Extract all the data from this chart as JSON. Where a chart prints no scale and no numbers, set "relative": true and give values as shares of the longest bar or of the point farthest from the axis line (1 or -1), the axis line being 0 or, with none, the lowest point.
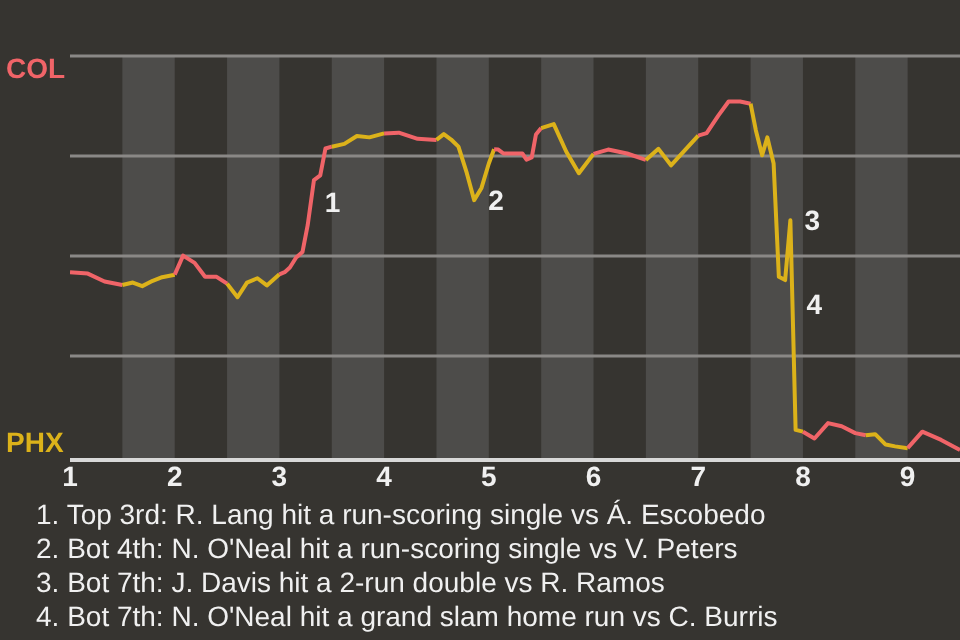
{
  "chart_data": {
    "type": "line",
    "relative": true,
    "xlim": [
      1,
      9.5
    ],
    "xticks": [
      1,
      2,
      3,
      4,
      5,
      6,
      7,
      8,
      9
    ],
    "series": [
      {
        "color": "#f06468",
        "x": [
          1,
          1.17,
          1.33,
          1.5
        ],
        "values": [
          0.524,
          0.52,
          0.498,
          0.488
        ]
      },
      {
        "color": "#dcb21a",
        "x": [
          1.5,
          1.6,
          1.69,
          1.79,
          1.88,
          2
        ],
        "values": [
          0.488,
          0.495,
          0.485,
          0.5,
          0.51,
          0.517
        ]
      },
      {
        "color": "#f06468",
        "x": [
          2,
          2.08,
          2.19,
          2.29,
          2.4,
          2.5
        ],
        "values": [
          0.517,
          0.57,
          0.55,
          0.511,
          0.511,
          0.492
        ]
      },
      {
        "color": "#dcb21a",
        "x": [
          2.5,
          2.6,
          2.69,
          2.79,
          2.88,
          3
        ],
        "values": [
          0.492,
          0.454,
          0.495,
          0.507,
          0.487,
          0.518
        ]
      },
      {
        "color": "#f06468",
        "x": [
          3,
          3.05,
          3.1,
          3.16,
          3.22,
          3.27,
          3.33,
          3.39,
          3.44,
          3.5
        ],
        "values": [
          0.518,
          0.524,
          0.537,
          0.565,
          0.58,
          0.655,
          0.781,
          0.794,
          0.869,
          0.874
        ]
      },
      {
        "color": "#dcb21a",
        "x": [
          3.5,
          3.62,
          3.74,
          3.86,
          4
        ],
        "values": [
          0.874,
          0.882,
          0.904,
          0.9,
          0.911
        ]
      },
      {
        "color": "#f06468",
        "x": [
          4,
          4.14,
          4.32,
          4.5
        ],
        "values": [
          0.911,
          0.913,
          0.896,
          0.893
        ]
      },
      {
        "color": "#dcb21a",
        "x": [
          4.5,
          4.57,
          4.64,
          4.71,
          4.79,
          4.86,
          4.93,
          5,
          5.05
        ],
        "values": [
          0.893,
          0.909,
          0.894,
          0.874,
          0.8,
          0.725,
          0.759,
          0.827,
          0.867
        ]
      },
      {
        "color": "#f06468",
        "x": [
          5.05,
          5.09,
          5.14,
          5.18,
          5.23,
          5.27,
          5.32,
          5.36,
          5.41,
          5.45,
          5.5
        ],
        "values": [
          0.867,
          0.866,
          0.855,
          0.855,
          0.855,
          0.855,
          0.855,
          0.838,
          0.844,
          0.908,
          0.926
        ]
      },
      {
        "color": "#dcb21a",
        "x": [
          5.5,
          5.62,
          5.74,
          5.86,
          6
        ],
        "values": [
          0.926,
          0.937,
          0.86,
          0.8,
          0.854
        ]
      },
      {
        "color": "#f06468",
        "x": [
          6,
          6.14,
          6.32,
          6.5
        ],
        "values": [
          0.854,
          0.866,
          0.855,
          0.837
        ]
      },
      {
        "color": "#dcb21a",
        "x": [
          6.5,
          6.62,
          6.74,
          6.86,
          7
        ],
        "values": [
          0.837,
          0.868,
          0.822,
          0.86,
          0.905
        ]
      },
      {
        "color": "#f06468",
        "x": [
          7,
          7.08,
          7.19,
          7.29,
          7.4,
          7.5
        ],
        "values": [
          0.905,
          0.912,
          0.96,
          1,
          1,
          0.994
        ]
      },
      {
        "color": "#dcb21a",
        "x": [
          7.5,
          7.55,
          7.61,
          7.66,
          7.72,
          7.77,
          7.83,
          7.88,
          7.93,
          8
        ],
        "values": [
          0.994,
          0.92,
          0.85,
          0.9,
          0.827,
          0.511,
          0.502,
          0.669,
          0.084,
          0.079
        ]
      },
      {
        "color": "#f06468",
        "x": [
          8,
          8.11,
          8.24,
          8.37,
          8.5,
          8.6
        ],
        "values": [
          0.079,
          0.06,
          0.103,
          0.094,
          0.075,
          0.069
        ]
      },
      {
        "color": "#dcb21a",
        "x": [
          8.6,
          8.69,
          8.79,
          8.88,
          9
        ],
        "values": [
          0.069,
          0.072,
          0.043,
          0.038,
          0.033
        ]
      },
      {
        "color": "#f06468",
        "x": [
          9,
          9.14,
          9.32,
          9.5
        ],
        "values": [
          0.033,
          0.079,
          0.056,
          0.028
        ]
      }
    ],
    "ref_lines": [
      {
        "axis": "y",
        "value": 0.29,
        "color": "#8a8886"
      },
      {
        "axis": "y",
        "value": 0.569,
        "color": "#8a8886"
      },
      {
        "axis": "y",
        "value": 0.848,
        "color": "#8a8886"
      }
    ],
    "bands": [
      {
        "axis": "x",
        "from": 1.5,
        "to": 2,
        "color": "#4d4c4a"
      },
      {
        "axis": "x",
        "from": 2.5,
        "to": 3,
        "color": "#4d4c4a"
      },
      {
        "axis": "x",
        "from": 3.5,
        "to": 4,
        "color": "#4d4c4a"
      },
      {
        "axis": "x",
        "from": 4.5,
        "to": 5,
        "color": "#4d4c4a"
      },
      {
        "axis": "x",
        "from": 5.5,
        "to": 6,
        "color": "#4d4c4a"
      },
      {
        "axis": "x",
        "from": 6.5,
        "to": 7,
        "color": "#4d4c4a"
      },
      {
        "axis": "x",
        "from": 7.5,
        "to": 8,
        "color": "#4d4c4a"
      },
      {
        "axis": "x",
        "from": 8.5,
        "to": 9,
        "color": "#4d4c4a"
      }
    ],
    "annotations": [
      "COL",
      "PHX",
      {
        "text": "1",
        "x": 3.3,
        "y": 0.718
      },
      {
        "text": "2",
        "x": 4.86,
        "y": 0.725
      },
      {
        "text": "3",
        "x": 7.88,
        "y": 0.669
      },
      {
        "text": "4",
        "x": 7.9,
        "y": 0.435
      },
      "1. Top 3rd: R. Lang hit a run-scoring single vs Á. Escobedo",
      "2. Bot 4th: N. O'Neal hit a run-scoring single vs V. Peters",
      "3. Bot 7th: J. Davis hit a 2-run double vs R. Ramos",
      "4. Bot 7th: N. O'Neal hit a grand slam home run vs C. Burris"
    ],
    "marker": "none",
    "line_style": "solid",
    "legend": false
  }
}
